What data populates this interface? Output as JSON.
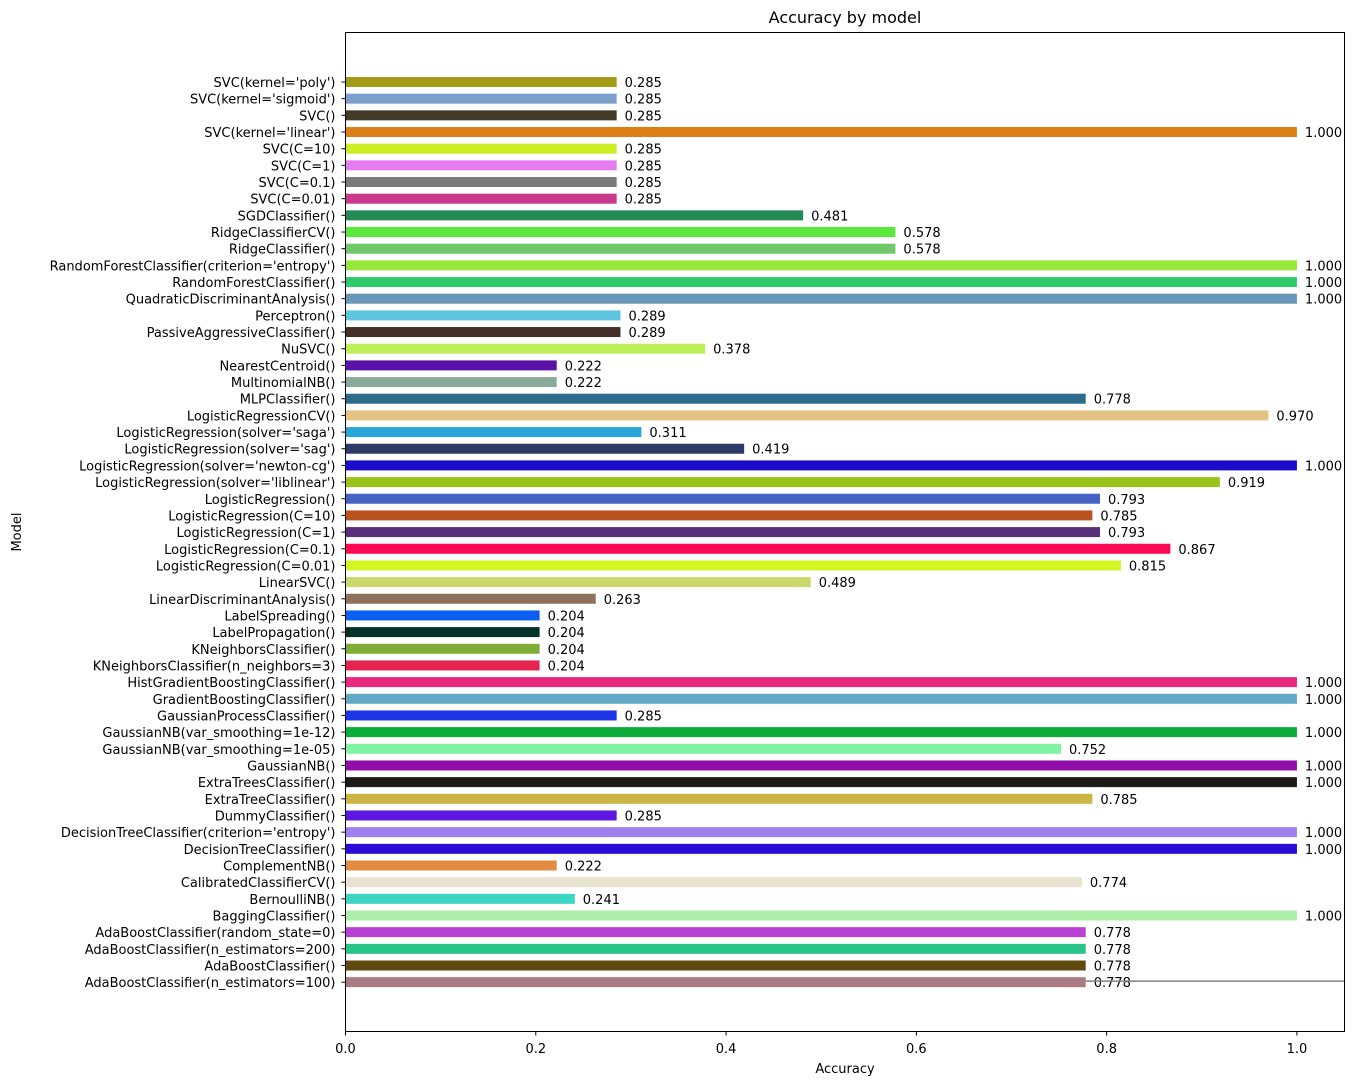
{
  "chart_data": {
    "type": "bar",
    "orientation": "horizontal",
    "title": "Accuracy by model",
    "xlabel": "Accuracy",
    "ylabel": "Model",
    "xlim": [
      0,
      1.05
    ],
    "xticks": [
      "0.0",
      "0.2",
      "0.4",
      "0.6",
      "0.8",
      "1.0"
    ],
    "grid": false,
    "reference_line": {
      "color": "#808080"
    },
    "categories": [
      "SVC(kernel='poly')",
      "SVC(kernel='sigmoid')",
      "SVC()",
      "SVC(kernel='linear')",
      "SVC(C=10)",
      "SVC(C=1)",
      "SVC(C=0.1)",
      "SVC(C=0.01)",
      "SGDClassifier()",
      "RidgeClassifierCV()",
      "RidgeClassifier()",
      "RandomForestClassifier(criterion='entropy')",
      "RandomForestClassifier()",
      "QuadraticDiscriminantAnalysis()",
      "Perceptron()",
      "PassiveAggressiveClassifier()",
      "NuSVC()",
      "NearestCentroid()",
      "MultinomialNB()",
      "MLPClassifier()",
      "LogisticRegressionCV()",
      "LogisticRegression(solver='saga')",
      "LogisticRegression(solver='sag')",
      "LogisticRegression(solver='newton-cg')",
      "LogisticRegression(solver='liblinear')",
      "LogisticRegression()",
      "LogisticRegression(C=10)",
      "LogisticRegression(C=1)",
      "LogisticRegression(C=0.1)",
      "LogisticRegression(C=0.01)",
      "LinearSVC()",
      "LinearDiscriminantAnalysis()",
      "LabelSpreading()",
      "LabelPropagation()",
      "KNeighborsClassifier()",
      "KNeighborsClassifier(n_neighbors=3)",
      "HistGradientBoostingClassifier()",
      "GradientBoostingClassifier()",
      "GaussianProcessClassifier()",
      "GaussianNB(var_smoothing=1e-12)",
      "GaussianNB(var_smoothing=1e-05)",
      "GaussianNB()",
      "ExtraTreesClassifier()",
      "ExtraTreeClassifier()",
      "DummyClassifier()",
      "DecisionTreeClassifier(criterion='entropy')",
      "DecisionTreeClassifier()",
      "ComplementNB()",
      "CalibratedClassifierCV()",
      "BernoulliNB()",
      "BaggingClassifier()",
      "AdaBoostClassifier(random_state=0)",
      "AdaBoostClassifier(n_estimators=200)",
      "AdaBoostClassifier()",
      "AdaBoostClassifier(n_estimators=100)"
    ],
    "values": [
      0.285,
      0.285,
      0.285,
      1.0,
      0.285,
      0.285,
      0.285,
      0.285,
      0.481,
      0.578,
      0.578,
      1.0,
      1.0,
      1.0,
      0.289,
      0.289,
      0.378,
      0.222,
      0.222,
      0.778,
      0.97,
      0.311,
      0.419,
      1.0,
      0.919,
      0.793,
      0.785,
      0.793,
      0.867,
      0.815,
      0.489,
      0.263,
      0.204,
      0.204,
      0.204,
      0.204,
      1.0,
      1.0,
      0.285,
      1.0,
      0.752,
      1.0,
      1.0,
      0.785,
      0.285,
      1.0,
      1.0,
      0.222,
      0.774,
      0.241,
      1.0,
      0.778,
      0.778,
      0.778,
      0.778
    ],
    "value_labels": [
      "0.285",
      "0.285",
      "0.285",
      "1.000",
      "0.285",
      "0.285",
      "0.285",
      "0.285",
      "0.481",
      "0.578",
      "0.578",
      "1.000",
      "1.000",
      "1.000",
      "0.289",
      "0.289",
      "0.378",
      "0.222",
      "0.222",
      "0.778",
      "0.970",
      "0.311",
      "0.419",
      "1.000",
      "0.919",
      "0.793",
      "0.785",
      "0.793",
      "0.867",
      "0.815",
      "0.489",
      "0.263",
      "0.204",
      "0.204",
      "0.204",
      "0.204",
      "1.000",
      "1.000",
      "0.285",
      "1.000",
      "0.752",
      "1.000",
      "1.000",
      "0.785",
      "0.285",
      "1.000",
      "1.000",
      "0.222",
      "0.774",
      "0.241",
      "1.000",
      "0.778",
      "0.778",
      "0.778",
      "0.778"
    ],
    "colors": [
      "#a39a16",
      "#7d9fcb",
      "#423a27",
      "#dd7f17",
      "#ccec24",
      "#e57cf0",
      "#7a7a7a",
      "#c93a8c",
      "#238a56",
      "#5ce83a",
      "#71c86a",
      "#97e63a",
      "#2ecb6c",
      "#6896b6",
      "#5ec4e0",
      "#433029",
      "#bdef5a",
      "#5a12a8",
      "#8aab99",
      "#2e6a8a",
      "#e2c383",
      "#29a6d8",
      "#2c3a65",
      "#1b0cc9",
      "#9ac418",
      "#4462c4",
      "#b9531f",
      "#5a2f7a",
      "#fc0a51",
      "#d3f521",
      "#cad86a",
      "#8e705c",
      "#0a5ef0",
      "#06302a",
      "#7fad37",
      "#e4234f",
      "#ea287f",
      "#62a9c6",
      "#1d35e6",
      "#0bac3a",
      "#7ff4a4",
      "#900ea8",
      "#1e1a18",
      "#ccb544",
      "#5c18e0",
      "#9e81ee",
      "#2a0cd6",
      "#e28b41",
      "#e8e3d0",
      "#3cd6c2",
      "#adefa8",
      "#b841d4",
      "#29c48a",
      "#5e4911",
      "#a97b82"
    ]
  }
}
